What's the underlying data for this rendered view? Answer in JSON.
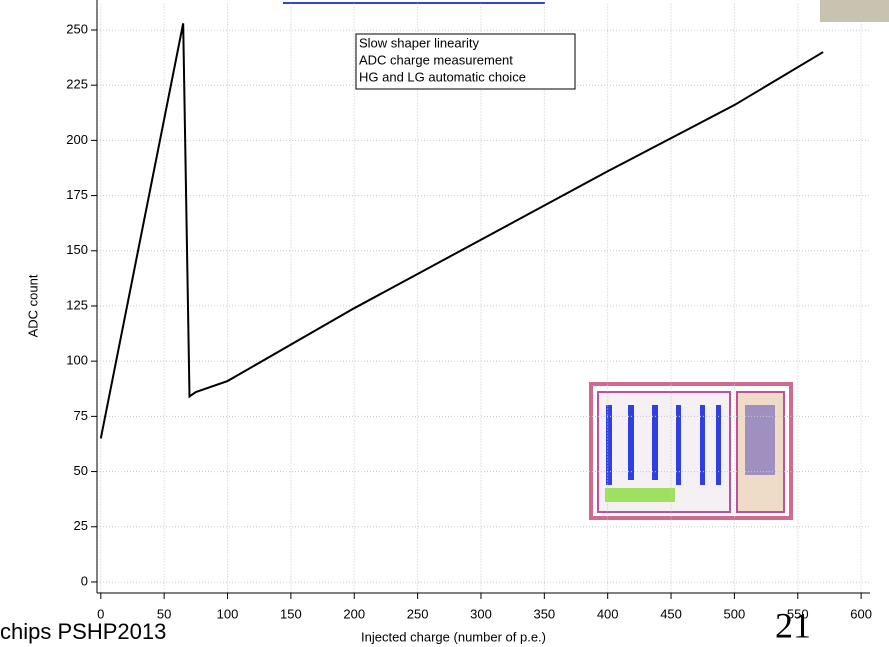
{
  "chart_data": {
    "type": "line",
    "xlabel": "Injected charge (number of p.e.)",
    "ylabel": "ADC count",
    "annotation": [
      "Slow shaper linearity",
      "ADC charge measurement",
      "HG and LG automatic choice"
    ],
    "series": [
      {
        "color": "#000000",
        "x": [
          0,
          65,
          70,
          75,
          100,
          200,
          300,
          400,
          500,
          570
        ],
        "values": [
          65,
          253,
          84,
          86,
          91,
          124,
          155,
          186,
          216,
          240
        ]
      }
    ],
    "xlim": [
      -3,
      607
    ],
    "ylim": [
      -5,
      262
    ],
    "xticks": [
      0,
      50,
      100,
      150,
      200,
      250,
      300,
      350,
      400,
      450,
      500,
      550,
      600
    ],
    "yticks": [
      0,
      25,
      50,
      75,
      100,
      125,
      150,
      175,
      200,
      225,
      250
    ],
    "grid": true
  },
  "slide": {
    "footer": "chips PSHP2013",
    "page_number": "21"
  }
}
